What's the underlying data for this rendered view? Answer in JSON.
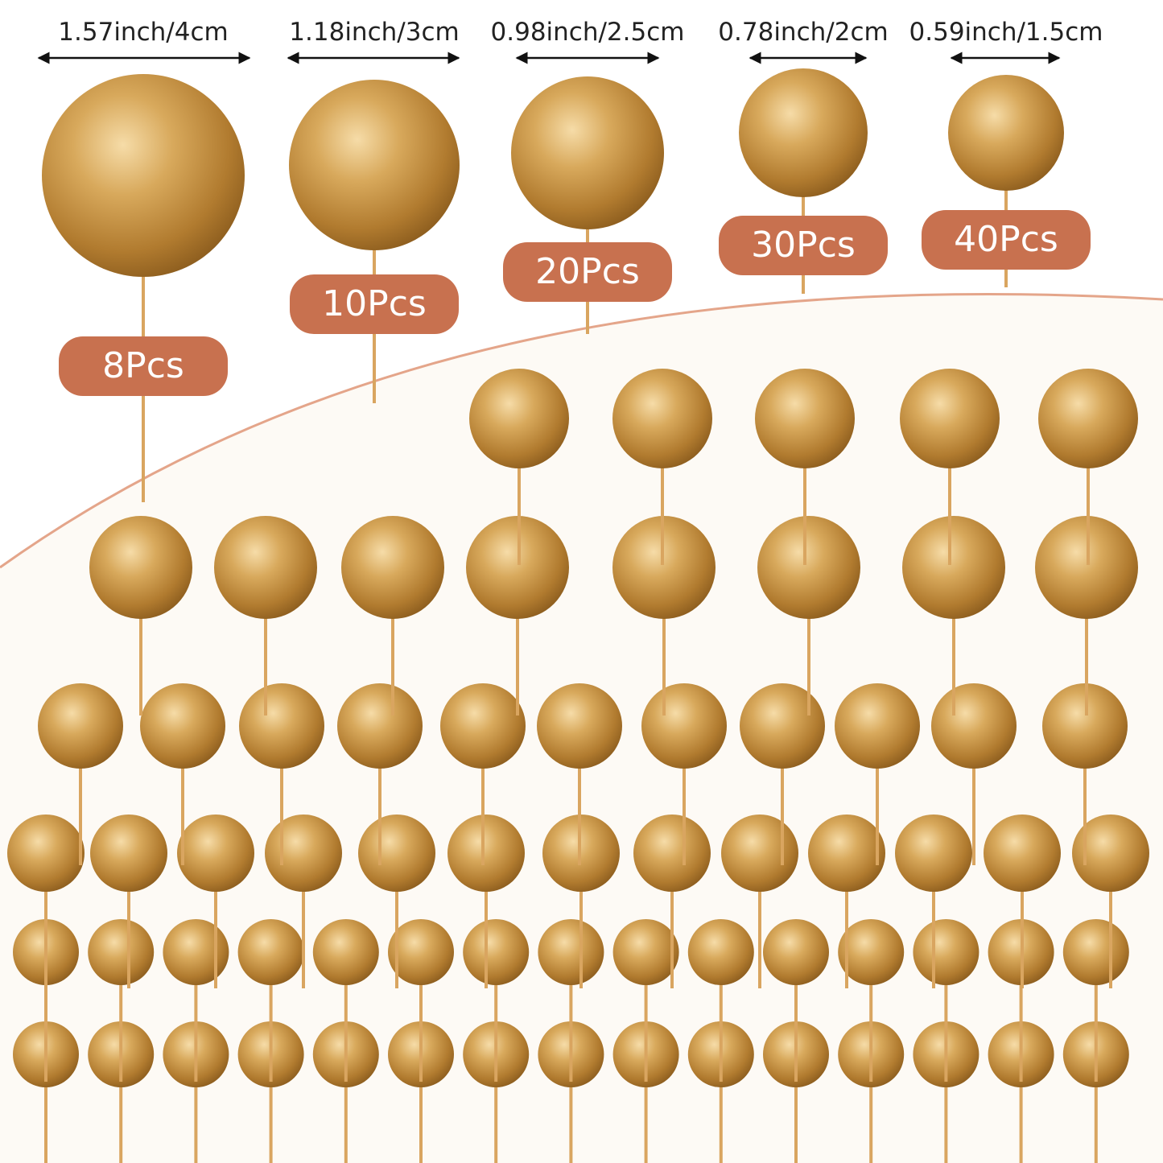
{
  "items": [
    {
      "size": "1.57inch/4cm",
      "count": "8Pcs"
    },
    {
      "size": "1.18inch/3cm",
      "count": "10Pcs"
    },
    {
      "size": "0.98inch/2.5cm",
      "count": "20Pcs"
    },
    {
      "size": "0.78inch/2cm",
      "count": "30Pcs"
    },
    {
      "size": "0.59inch/1.5cm",
      "count": "40Pcs"
    }
  ]
}
